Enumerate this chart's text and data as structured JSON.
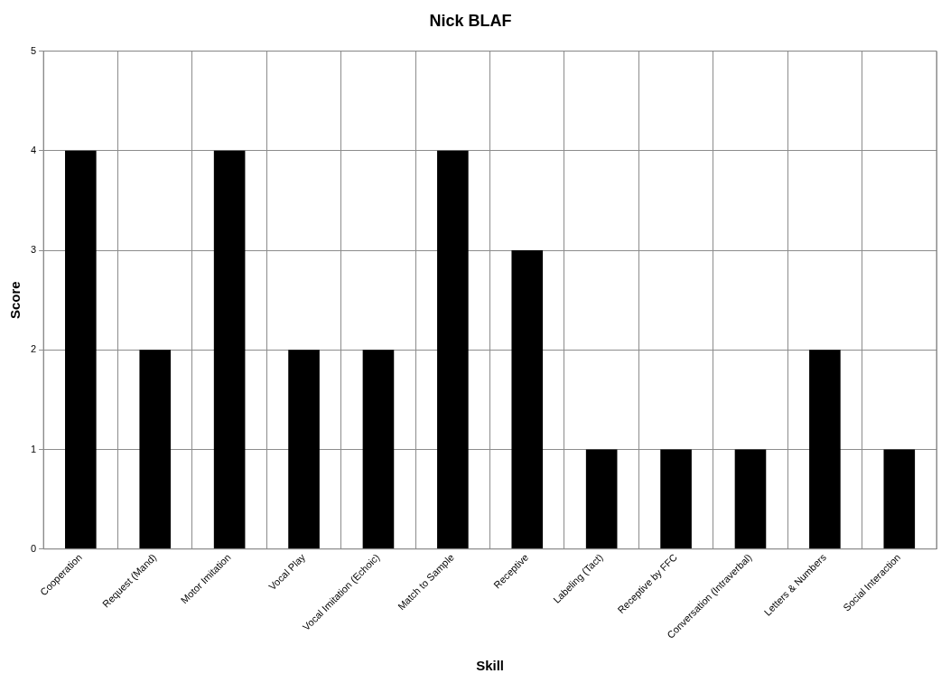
{
  "chart_data": {
    "type": "bar",
    "title": "Nick BLAF",
    "xlabel": "Skill",
    "ylabel": "Score",
    "categories": [
      "Cooperation",
      "Request (Mand)",
      "Motor Imitation",
      "Vocal Play",
      "Vocal Imitation (Echoic)",
      "Match to Sample",
      "Receptive",
      "Labeling (Tact)",
      "Receptive by FFC",
      "Conversation (Intraverbal)",
      "Letters & Numbers",
      "Social Interaction"
    ],
    "values": [
      4,
      2,
      4,
      2,
      2,
      4,
      3,
      1,
      1,
      1,
      2,
      1
    ],
    "color": "#000000",
    "ylim": [
      0,
      5
    ],
    "yticks": [
      0,
      1,
      2,
      3,
      4,
      5
    ],
    "grid": true,
    "legend": false
  }
}
